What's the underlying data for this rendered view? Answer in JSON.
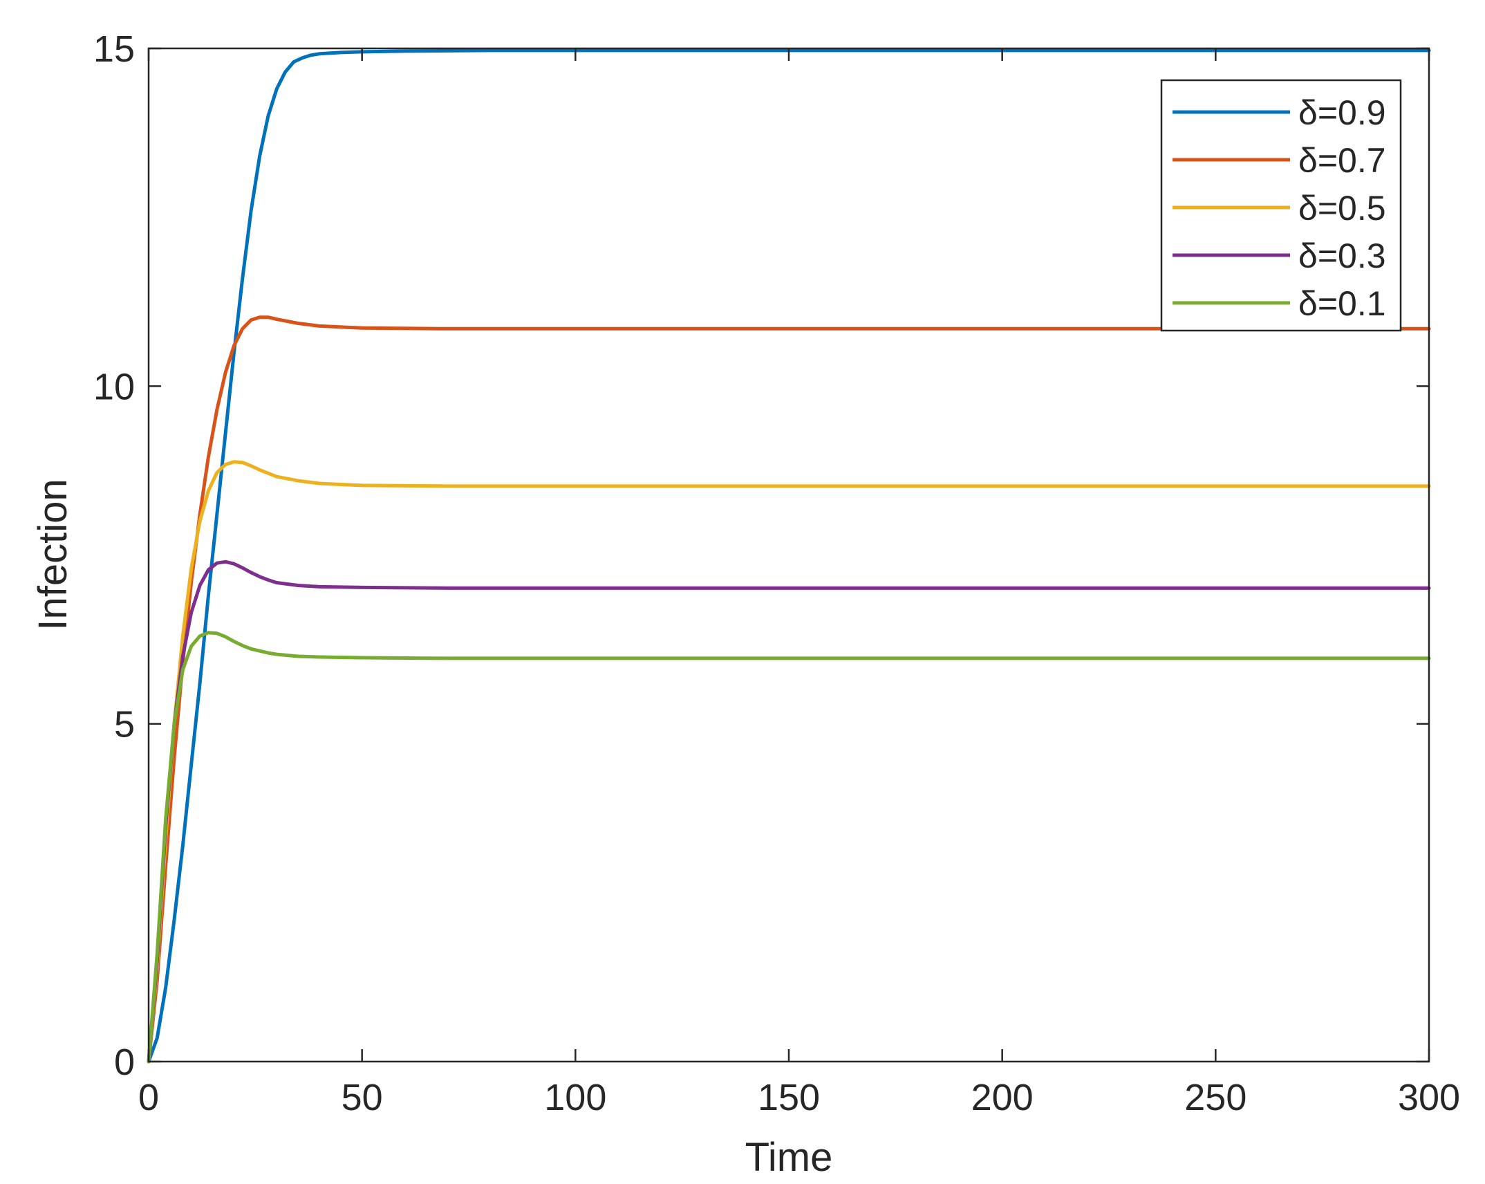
{
  "chart_data": {
    "type": "line",
    "title": "",
    "xlabel": "Time",
    "ylabel": "Infection",
    "xlim": [
      0,
      300
    ],
    "ylim": [
      0,
      15
    ],
    "xticks": [
      0,
      50,
      100,
      150,
      200,
      250,
      300
    ],
    "yticks": [
      0,
      5,
      10,
      15
    ],
    "grid": false,
    "legend_position": "top-right",
    "series": [
      {
        "name": "δ=0.9",
        "color": "#0072BD",
        "x": [
          0,
          2,
          4,
          6,
          8,
          10,
          12,
          14,
          16,
          18,
          20,
          22,
          24,
          26,
          28,
          30,
          32,
          34,
          36,
          38,
          40,
          45,
          50,
          60,
          80,
          100,
          150,
          200,
          250,
          300
        ],
        "y": [
          0,
          0.35,
          1.1,
          2.1,
          3.2,
          4.4,
          5.6,
          6.9,
          8.1,
          9.3,
          10.5,
          11.6,
          12.6,
          13.4,
          14.0,
          14.4,
          14.65,
          14.8,
          14.86,
          14.9,
          14.92,
          14.94,
          14.95,
          14.96,
          14.97,
          14.97,
          14.97,
          14.97,
          14.97,
          14.97
        ]
      },
      {
        "name": "δ=0.7",
        "color": "#D95319",
        "x": [
          0,
          2,
          4,
          6,
          8,
          10,
          12,
          14,
          16,
          18,
          20,
          22,
          24,
          26,
          28,
          30,
          35,
          40,
          50,
          70,
          100,
          150,
          200,
          250,
          300
        ],
        "y": [
          0,
          1.2,
          2.9,
          4.5,
          5.9,
          7.1,
          8.1,
          8.95,
          9.65,
          10.2,
          10.6,
          10.85,
          10.98,
          11.02,
          11.02,
          10.99,
          10.93,
          10.89,
          10.86,
          10.85,
          10.85,
          10.85,
          10.85,
          10.85,
          10.85
        ]
      },
      {
        "name": "δ=0.5",
        "color": "#EDB120",
        "x": [
          0,
          2,
          4,
          6,
          8,
          10,
          12,
          14,
          16,
          18,
          20,
          22,
          24,
          26,
          28,
          30,
          35,
          40,
          50,
          70,
          100,
          150,
          200,
          250,
          300
        ],
        "y": [
          0,
          1.4,
          3.3,
          5.0,
          6.3,
          7.3,
          8.0,
          8.45,
          8.72,
          8.84,
          8.88,
          8.87,
          8.82,
          8.76,
          8.71,
          8.66,
          8.6,
          8.56,
          8.53,
          8.52,
          8.52,
          8.52,
          8.52,
          8.52,
          8.52
        ]
      },
      {
        "name": "δ=0.3",
        "color": "#7E2F8E",
        "x": [
          0,
          2,
          4,
          6,
          8,
          10,
          12,
          14,
          16,
          18,
          20,
          22,
          24,
          26,
          28,
          30,
          35,
          40,
          50,
          70,
          100,
          150,
          200,
          250,
          300
        ],
        "y": [
          0,
          1.5,
          3.5,
          5.0,
          6.0,
          6.65,
          7.05,
          7.28,
          7.38,
          7.4,
          7.37,
          7.31,
          7.24,
          7.18,
          7.13,
          7.09,
          7.05,
          7.03,
          7.02,
          7.01,
          7.01,
          7.01,
          7.01,
          7.01,
          7.01
        ]
      },
      {
        "name": "δ=0.1",
        "color": "#77AC30",
        "x": [
          0,
          2,
          4,
          6,
          8,
          10,
          12,
          14,
          16,
          18,
          20,
          22,
          24,
          26,
          28,
          30,
          35,
          40,
          50,
          70,
          100,
          150,
          200,
          250,
          300
        ],
        "y": [
          0,
          1.6,
          3.6,
          5.0,
          5.8,
          6.15,
          6.3,
          6.35,
          6.34,
          6.29,
          6.22,
          6.16,
          6.11,
          6.08,
          6.05,
          6.03,
          6.0,
          5.99,
          5.98,
          5.97,
          5.97,
          5.97,
          5.97,
          5.97,
          5.97
        ]
      }
    ]
  }
}
